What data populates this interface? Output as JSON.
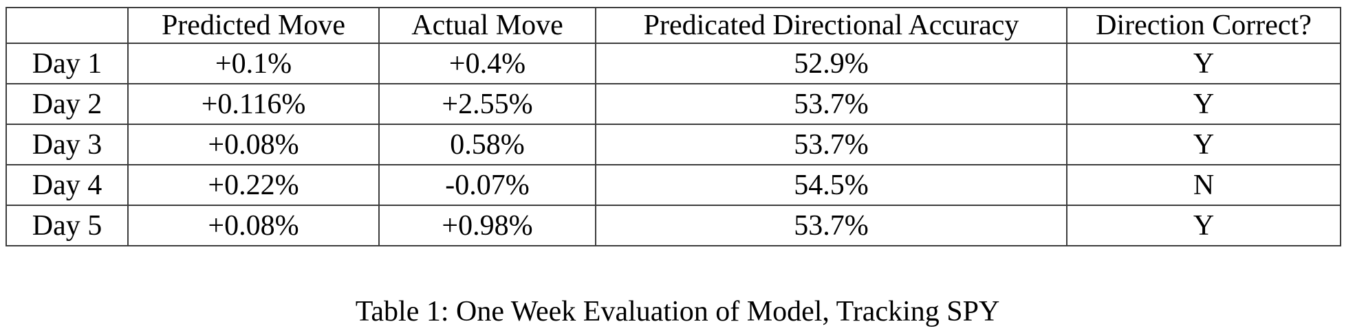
{
  "document": {
    "table": {
      "headers": [
        "",
        "Predicted Move",
        "Actual Move",
        "Predicated Directional Accuracy",
        "Direction Correct?"
      ],
      "rows": [
        {
          "label": "Day 1",
          "predicted_move": "+0.1%",
          "actual_move": "+0.4%",
          "directional_accuracy": "52.9%",
          "direction_correct": "Y"
        },
        {
          "label": "Day 2",
          "predicted_move": "+0.116%",
          "actual_move": "+2.55%",
          "directional_accuracy": "53.7%",
          "direction_correct": "Y"
        },
        {
          "label": "Day 3",
          "predicted_move": "+0.08%",
          "actual_move": "0.58%",
          "directional_accuracy": "53.7%",
          "direction_correct": "Y"
        },
        {
          "label": "Day 4",
          "predicted_move": "+0.22%",
          "actual_move": "-0.07%",
          "directional_accuracy": "54.5%",
          "direction_correct": "N"
        },
        {
          "label": "Day 5",
          "predicted_move": "+0.08%",
          "actual_move": "+0.98%",
          "directional_accuracy": "53.7%",
          "direction_correct": "Y"
        }
      ]
    },
    "caption": "Table 1: One Week Evaluation of Model, Tracking SPY",
    "colors": {
      "border": "#3c3c3c",
      "text": "#000000",
      "background": "#ffffff"
    }
  }
}
